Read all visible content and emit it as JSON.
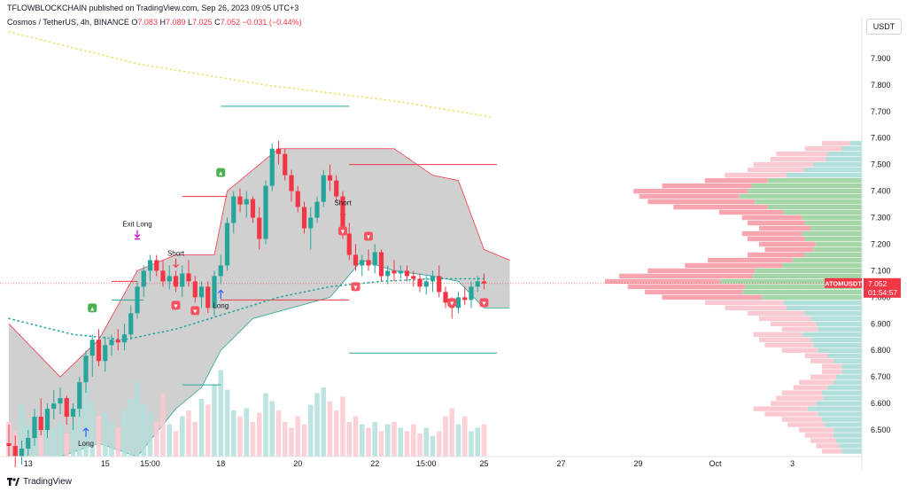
{
  "header": {
    "publish_line": "TFLOWBLOCKCHAIN published on TradingView.com, Sep 26, 2023 09:05 UTC+3",
    "symbol_line": "Cosmos / TetherUS, 4h, BINANCE",
    "ohlc": {
      "o_label": "O",
      "o": "7.083",
      "h_label": "H",
      "h": "7.089",
      "l_label": "L",
      "l": "7.025",
      "c_label": "C",
      "c": "7.052",
      "change": "−0.031 (−0.44%)"
    },
    "currency": "USDT"
  },
  "brand": {
    "name": "TradingView",
    "icon": "tradingview-logo-icon"
  },
  "price_tag": {
    "symbol": "ATOMUSDT",
    "price": "7.052",
    "countdown": "01:54:57",
    "color": "#f23645"
  },
  "colors": {
    "up": "#26a69a",
    "down": "#f23645",
    "cloud": "#c8c8c8",
    "vp_up": "#a5d6a7",
    "vp_down": "#f8a5b0",
    "vp_light": "#b2dfdb",
    "vp_light_down": "#fbc9d1"
  },
  "chart_data": {
    "type": "candlestick",
    "timeframe": "4h",
    "ylim": [
      6.4,
      8.02
    ],
    "y_ticks": [
      "7.900",
      "7.800",
      "7.700",
      "7.600",
      "7.500",
      "7.400",
      "7.300",
      "7.200",
      "7.100",
      "7.000",
      "6.900",
      "6.800",
      "6.700",
      "6.600",
      "6.500"
    ],
    "x_ticks": [
      {
        "label": "13",
        "bar": 3
      },
      {
        "label": "15",
        "bar": 15
      },
      {
        "label": "15:00",
        "bar": 22
      },
      {
        "label": "18",
        "bar": 33
      },
      {
        "label": "20",
        "bar": 45
      },
      {
        "label": "22",
        "bar": 57
      },
      {
        "label": "15:00",
        "bar": 65
      },
      {
        "label": "25",
        "bar": 74
      },
      {
        "label": "27",
        "bar": 86
      },
      {
        "label": "29",
        "bar": 98
      },
      {
        "label": "Oct",
        "bar": 110
      },
      {
        "label": "3",
        "bar": 122
      }
    ],
    "candles": [
      [
        6.45,
        6.52,
        6.4,
        6.44
      ],
      [
        6.44,
        6.48,
        6.36,
        6.4
      ],
      [
        6.4,
        6.46,
        6.37,
        6.43
      ],
      [
        6.43,
        6.5,
        6.4,
        6.47
      ],
      [
        6.47,
        6.58,
        6.44,
        6.55
      ],
      [
        6.55,
        6.62,
        6.48,
        6.5
      ],
      [
        6.5,
        6.6,
        6.47,
        6.58
      ],
      [
        6.58,
        6.65,
        6.54,
        6.6
      ],
      [
        6.6,
        6.66,
        6.56,
        6.62
      ],
      [
        6.62,
        6.63,
        6.52,
        6.55
      ],
      [
        6.55,
        6.6,
        6.5,
        6.58
      ],
      [
        6.58,
        6.7,
        6.55,
        6.68
      ],
      [
        6.68,
        6.8,
        6.64,
        6.78
      ],
      [
        6.78,
        6.86,
        6.7,
        6.84
      ],
      [
        6.84,
        6.88,
        6.74,
        6.76
      ],
      [
        6.76,
        6.85,
        6.72,
        6.82
      ],
      [
        6.82,
        6.86,
        6.78,
        6.84
      ],
      [
        6.84,
        6.88,
        6.8,
        6.83
      ],
      [
        6.83,
        6.9,
        6.8,
        6.86
      ],
      [
        6.86,
        6.97,
        6.84,
        6.94
      ],
      [
        6.94,
        7.06,
        6.92,
        7.04
      ],
      [
        7.04,
        7.12,
        7.0,
        7.1
      ],
      [
        7.1,
        7.16,
        7.06,
        7.14
      ],
      [
        7.14,
        7.16,
        7.08,
        7.1
      ],
      [
        7.1,
        7.14,
        7.04,
        7.06
      ],
      [
        7.06,
        7.12,
        7.03,
        7.08
      ],
      [
        7.08,
        7.1,
        7.02,
        7.04
      ],
      [
        7.04,
        7.12,
        7.0,
        7.09
      ],
      [
        7.09,
        7.14,
        7.04,
        7.06
      ],
      [
        7.06,
        7.08,
        6.98,
        7.0
      ],
      [
        7.0,
        7.06,
        6.96,
        7.04
      ],
      [
        7.04,
        7.06,
        6.94,
        6.96
      ],
      [
        6.96,
        7.1,
        6.93,
        7.08
      ],
      [
        7.08,
        7.16,
        7.05,
        7.12
      ],
      [
        7.12,
        7.3,
        7.1,
        7.28
      ],
      [
        7.28,
        7.4,
        7.24,
        7.38
      ],
      [
        7.38,
        7.41,
        7.32,
        7.35
      ],
      [
        7.35,
        7.4,
        7.3,
        7.37
      ],
      [
        7.37,
        7.38,
        7.28,
        7.3
      ],
      [
        7.3,
        7.34,
        7.18,
        7.22
      ],
      [
        7.22,
        7.44,
        7.2,
        7.42
      ],
      [
        7.42,
        7.58,
        7.4,
        7.56
      ],
      [
        7.56,
        7.59,
        7.5,
        7.54
      ],
      [
        7.54,
        7.56,
        7.44,
        7.46
      ],
      [
        7.46,
        7.48,
        7.36,
        7.4
      ],
      [
        7.4,
        7.42,
        7.32,
        7.34
      ],
      [
        7.34,
        7.36,
        7.24,
        7.26
      ],
      [
        7.26,
        7.34,
        7.18,
        7.3
      ],
      [
        7.3,
        7.38,
        7.28,
        7.36
      ],
      [
        7.36,
        7.48,
        7.34,
        7.46
      ],
      [
        7.46,
        7.5,
        7.4,
        7.44
      ],
      [
        7.44,
        7.46,
        7.36,
        7.38
      ],
      [
        7.38,
        7.4,
        7.22,
        7.24
      ],
      [
        7.24,
        7.28,
        7.14,
        7.16
      ],
      [
        7.16,
        7.2,
        7.1,
        7.12
      ],
      [
        7.12,
        7.16,
        7.08,
        7.14
      ],
      [
        7.14,
        7.18,
        7.1,
        7.12
      ],
      [
        7.12,
        7.2,
        7.09,
        7.17
      ],
      [
        7.17,
        7.18,
        7.06,
        7.08
      ],
      [
        7.08,
        7.12,
        7.05,
        7.1
      ],
      [
        7.1,
        7.14,
        7.06,
        7.09
      ],
      [
        7.09,
        7.12,
        7.07,
        7.1
      ],
      [
        7.1,
        7.12,
        7.06,
        7.08
      ],
      [
        7.08,
        7.1,
        7.04,
        7.07
      ],
      [
        7.07,
        7.09,
        7.02,
        7.04
      ],
      [
        7.04,
        7.08,
        7.01,
        7.06
      ],
      [
        7.06,
        7.1,
        7.02,
        7.08
      ],
      [
        7.08,
        7.12,
        7.0,
        7.02
      ],
      [
        7.02,
        7.04,
        6.96,
        6.98
      ],
      [
        6.98,
        7.0,
        6.92,
        6.96
      ],
      [
        6.96,
        7.02,
        6.94,
        7.0
      ],
      [
        7.0,
        7.04,
        6.97,
        6.99
      ],
      [
        6.99,
        7.06,
        6.96,
        7.04
      ],
      [
        7.04,
        7.08,
        7.02,
        7.06
      ],
      [
        7.06,
        7.09,
        7.03,
        7.052
      ]
    ],
    "volume": {
      "max": 100,
      "values": [
        30,
        22,
        45,
        28,
        35,
        18,
        40,
        25,
        30,
        20,
        28,
        55,
        60,
        48,
        35,
        38,
        30,
        25,
        42,
        50,
        65,
        45,
        38,
        30,
        55,
        28,
        22,
        35,
        40,
        30,
        50,
        45,
        62,
        75,
        58,
        40,
        35,
        42,
        30,
        38,
        55,
        48,
        40,
        30,
        25,
        35,
        28,
        45,
        55,
        60,
        48,
        40,
        52,
        30,
        35,
        28,
        25,
        30,
        22,
        28,
        30,
        25,
        22,
        28,
        20,
        25,
        18,
        22,
        35,
        42,
        28,
        35,
        22,
        25,
        28
      ],
      "colors_up_down": "by candle direction"
    },
    "moving_average": {
      "color": "#26a69a",
      "points": [
        [
          0,
          6.92
        ],
        [
          10,
          6.86
        ],
        [
          18,
          6.84
        ],
        [
          26,
          6.88
        ],
        [
          34,
          6.94
        ],
        [
          42,
          7.0
        ],
        [
          50,
          7.04
        ],
        [
          58,
          7.06
        ],
        [
          66,
          7.07
        ],
        [
          74,
          7.07
        ]
      ]
    },
    "long_ma": {
      "color": "#e6e46e",
      "points": [
        [
          0,
          8.0
        ],
        [
          20,
          7.88
        ],
        [
          40,
          7.8
        ],
        [
          60,
          7.74
        ],
        [
          75,
          7.68
        ]
      ]
    },
    "cloud": {
      "upper": [
        [
          0,
          6.9
        ],
        [
          8,
          6.7
        ],
        [
          14,
          6.84
        ],
        [
          20,
          7.1
        ],
        [
          26,
          7.16
        ],
        [
          32,
          7.16
        ],
        [
          34,
          7.4
        ],
        [
          42,
          7.56
        ],
        [
          60,
          7.56
        ],
        [
          66,
          7.46
        ],
        [
          70,
          7.44
        ],
        [
          74,
          7.18
        ],
        [
          78,
          7.14
        ]
      ],
      "lower": [
        [
          0,
          6.4
        ],
        [
          8,
          6.4
        ],
        [
          14,
          6.45
        ],
        [
          20,
          6.4
        ],
        [
          26,
          6.58
        ],
        [
          30,
          6.66
        ],
        [
          33,
          6.8
        ],
        [
          38,
          6.92
        ],
        [
          50,
          7.0
        ],
        [
          55,
          7.14
        ],
        [
          60,
          7.1
        ],
        [
          66,
          7.08
        ],
        [
          70,
          7.06
        ],
        [
          74,
          6.96
        ],
        [
          78,
          6.96
        ]
      ]
    },
    "levels": [
      {
        "price": 7.72,
        "from": 33,
        "to": 53,
        "color": "#26a69a"
      },
      {
        "price": 7.38,
        "from": 27,
        "to": 34,
        "color": "#f23645"
      },
      {
        "price": 7.5,
        "from": 53,
        "to": 76,
        "color": "#f23645"
      },
      {
        "price": 7.06,
        "from": 16,
        "to": 20,
        "color": "#f23645"
      },
      {
        "price": 6.99,
        "from": 16,
        "to": 21,
        "color": "#26a69a"
      },
      {
        "price": 6.99,
        "from": 33,
        "to": 53,
        "color": "#f23645"
      },
      {
        "price": 6.79,
        "from": 53,
        "to": 76,
        "color": "#26a69a"
      },
      {
        "price": 6.67,
        "from": 27,
        "to": 33,
        "color": "#26a69a"
      }
    ],
    "signals": [
      {
        "bar": 12,
        "text": "Long",
        "kind": "long",
        "price": 6.5
      },
      {
        "bar": 20,
        "text": "Exit Long",
        "kind": "exit",
        "price": 7.22
      },
      {
        "bar": 26,
        "text": "Short",
        "kind": "short",
        "price": 7.14
      },
      {
        "bar": 33,
        "text": "Long",
        "kind": "long",
        "price": 7.02
      },
      {
        "bar": 52,
        "text": "Short",
        "kind": "short",
        "price": 7.33
      }
    ],
    "markers": [
      {
        "bar": 13,
        "price": 6.96,
        "kind": "buy"
      },
      {
        "bar": 33,
        "price": 7.47,
        "kind": "buy"
      },
      {
        "bar": 26,
        "price": 6.97,
        "kind": "sell"
      },
      {
        "bar": 29,
        "price": 6.95,
        "kind": "sell"
      },
      {
        "bar": 52,
        "price": 7.25,
        "kind": "sell"
      },
      {
        "bar": 56,
        "price": 7.23,
        "kind": "sell"
      },
      {
        "bar": 54,
        "price": 7.04,
        "kind": "sell"
      },
      {
        "bar": 69,
        "price": 6.98,
        "kind": "sell"
      },
      {
        "bar": 74,
        "price": 6.98,
        "kind": "sell"
      }
    ],
    "volume_profile": {
      "levels": [
        7.58,
        7.56,
        7.54,
        7.52,
        7.5,
        7.48,
        7.46,
        7.44,
        7.42,
        7.4,
        7.38,
        7.36,
        7.34,
        7.32,
        7.3,
        7.28,
        7.26,
        7.24,
        7.22,
        7.2,
        7.18,
        7.16,
        7.14,
        7.12,
        7.1,
        7.08,
        7.06,
        7.04,
        7.02,
        7.0,
        6.98,
        6.96,
        6.94,
        6.92,
        6.9,
        6.88,
        6.86,
        6.84,
        6.82,
        6.8,
        6.78,
        6.76,
        6.74,
        6.72,
        6.7,
        6.68,
        6.66,
        6.64,
        6.62,
        6.6,
        6.58,
        6.56,
        6.54,
        6.52,
        6.5,
        6.48,
        6.46,
        6.44,
        6.42
      ],
      "totals": [
        14,
        20,
        30,
        32,
        38,
        40,
        48,
        55,
        70,
        80,
        78,
        75,
        66,
        50,
        42,
        40,
        36,
        42,
        40,
        36,
        34,
        40,
        54,
        62,
        75,
        85,
        90,
        82,
        76,
        70,
        55,
        48,
        40,
        36,
        32,
        28,
        38,
        36,
        34,
        28,
        20,
        18,
        14,
        14,
        18,
        22,
        24,
        28,
        30,
        32,
        38,
        34,
        28,
        26,
        22,
        20,
        18,
        16,
        14
      ],
      "up_share": [
        0.3,
        0.35,
        0.4,
        0.4,
        0.45,
        0.5,
        0.55,
        0.6,
        0.55,
        0.5,
        0.55,
        0.5,
        0.5,
        0.55,
        0.5,
        0.5,
        0.5,
        0.5,
        0.5,
        0.45,
        0.5,
        0.5,
        0.45,
        0.45,
        0.5,
        0.45,
        0.55,
        0.5,
        0.55,
        0.5,
        0.5,
        0.55,
        0.5,
        0.5,
        0.5,
        0.55,
        0.55,
        0.5,
        0.5,
        0.55,
        0.6,
        0.55,
        0.5,
        0.5,
        0.5,
        0.45,
        0.5,
        0.5,
        0.45,
        0.5,
        0.5,
        0.45,
        0.5,
        0.5,
        0.45,
        0.5,
        0.5,
        0.5,
        0.5
      ],
      "value_area": [
        7.0,
        7.44
      ]
    }
  }
}
